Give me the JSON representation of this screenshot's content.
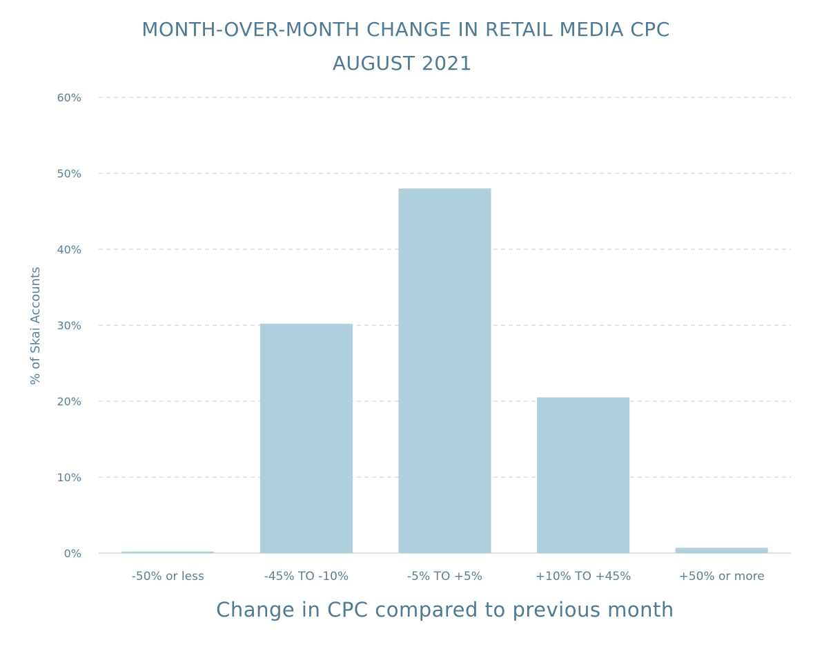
{
  "chart_data": {
    "type": "bar",
    "title": "MONTH-OVER-MONTH CHANGE IN RETAIL MEDIA CPC",
    "subtitle": "AUGUST 2021",
    "xlabel": "Change in CPC compared to previous month",
    "ylabel": "% of Skai Accounts",
    "categories": [
      "-50% or less",
      "-45% TO -10%",
      "-5% TO +5%",
      "+10% TO +45%",
      "+50% or more"
    ],
    "values": [
      0.2,
      30.2,
      48.0,
      20.5,
      0.7
    ],
    "ylim": [
      0,
      60
    ],
    "yticks": [
      0,
      10,
      20,
      30,
      40,
      50,
      60
    ],
    "ytick_labels": [
      "0%",
      "10%",
      "20%",
      "30%",
      "40%",
      "50%",
      "60%"
    ],
    "grid": true,
    "legend": "none",
    "colors": {
      "bar": "#aecfdb",
      "title": "#4f7a94",
      "axis_text": "#5a7f96",
      "grid": "#d9dde0",
      "axis_line": "#cfd6db"
    }
  }
}
